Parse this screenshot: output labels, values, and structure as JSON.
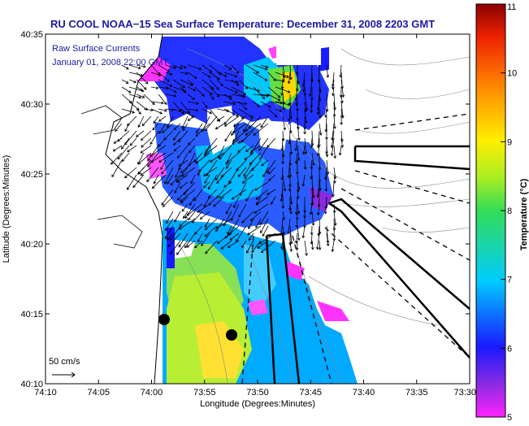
{
  "title": "RU COOL  NOAA−15  Sea Surface Temperature:  December 31, 2008 2203 GMT",
  "legend": {
    "line1": "Raw Surface Currents",
    "line2": "January 01, 2008 22:00 GMT"
  },
  "scale": {
    "label": "50 cm/s"
  },
  "x_axis": {
    "title": "Longitude (Degrees:Minutes)",
    "ticks": [
      "74:10",
      "74:05",
      "74:00",
      "73:55",
      "73:50",
      "73:45",
      "73:40",
      "73:35",
      "73:30"
    ]
  },
  "y_axis": {
    "title": "Latitude (Degrees:Minutes)",
    "ticks": [
      "40:35",
      "40:30",
      "40:25",
      "40:20",
      "40:15",
      "40:10"
    ]
  },
  "colorbar": {
    "title": "Temperature (°C)",
    "ticks": [
      "11",
      "10",
      "9",
      "8",
      "7",
      "6",
      "5"
    ],
    "min": 5,
    "max": 11
  },
  "colors": {
    "title": "#1a1aa6",
    "land": "#ffffff",
    "vector": "#000000"
  }
}
